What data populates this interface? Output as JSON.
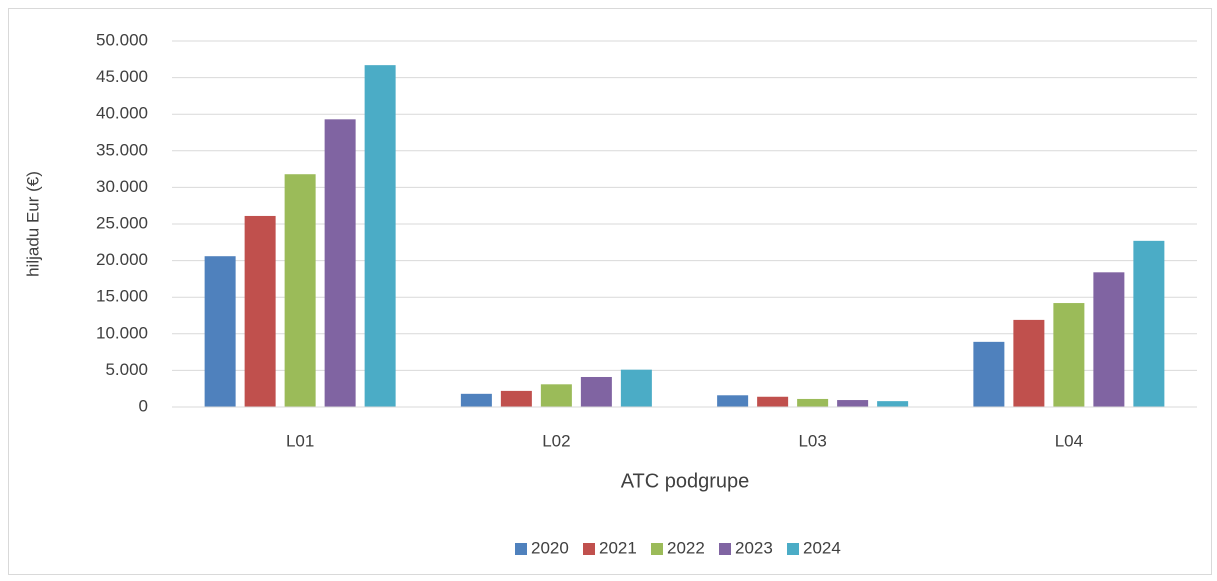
{
  "chart_data": {
    "type": "bar",
    "ylabel": "hiljadu Eur (€)",
    "xlabel": "ATC podgrupe",
    "categories": [
      "L01",
      "L02",
      "L03",
      "L04"
    ],
    "series": [
      {
        "name": "2020",
        "color": "#4f81bd",
        "values": [
          20600,
          1800,
          1600,
          8900
        ]
      },
      {
        "name": "2021",
        "color": "#c0504d",
        "values": [
          26100,
          2200,
          1400,
          11900
        ]
      },
      {
        "name": "2022",
        "color": "#9bbb59",
        "values": [
          31800,
          3100,
          1100,
          14200
        ]
      },
      {
        "name": "2023",
        "color": "#8064a2",
        "values": [
          39300,
          4100,
          950,
          18400
        ]
      },
      {
        "name": "2024",
        "color": "#4bacc6",
        "values": [
          46700,
          5100,
          800,
          22700
        ]
      }
    ],
    "ylim": [
      0,
      50000
    ],
    "yticks": [
      0,
      {
        "value": 5000,
        "label": "5.000"
      },
      {
        "value": 10000,
        "label": "10.000"
      },
      {
        "value": 15000,
        "label": "15.000"
      },
      {
        "value": 20000,
        "label": "20.000"
      },
      {
        "value": 25000,
        "label": "25.000"
      },
      {
        "value": 30000,
        "label": "30.000"
      },
      {
        "value": 35000,
        "label": "35.000"
      },
      {
        "value": 40000,
        "label": "40.000"
      },
      {
        "value": 45000,
        "label": "45.000"
      },
      {
        "value": 50000,
        "label": "50.000"
      }
    ],
    "grid": true,
    "legend": "bottom"
  }
}
